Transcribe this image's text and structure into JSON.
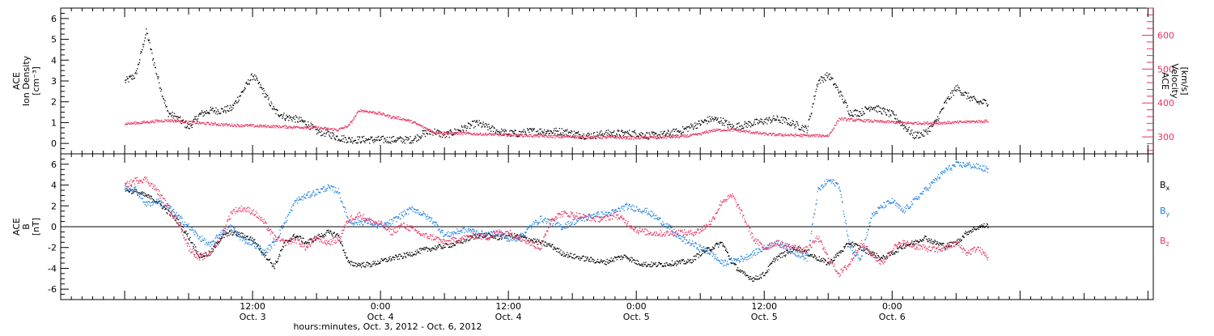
{
  "colors": {
    "black": "#000000",
    "velocity": "#e8325f",
    "by": "#1a7fe0",
    "bz": "#e8325f"
  },
  "chart_data": [
    {
      "type": "scatter",
      "panel": "top",
      "ylabel_lines": [
        "ACE",
        "Ion Density",
        "[cm⁻³]"
      ],
      "y2label_lines": [
        "ACE",
        "Velocity",
        "[km/s]"
      ],
      "ylim": [
        -0.5,
        6.5
      ],
      "y_ticks": [
        0,
        1,
        2,
        3,
        4,
        5,
        6
      ],
      "y2lim": [
        250,
        680
      ],
      "y2_ticks": [
        300,
        400,
        500,
        600
      ],
      "series": [
        {
          "role": "density",
          "axis": "left",
          "x_hours": [
            0,
            1,
            2,
            3,
            4,
            5,
            6,
            7,
            8,
            9,
            10,
            11,
            12,
            13,
            14,
            15,
            16,
            17,
            18,
            19,
            20,
            21,
            22,
            23,
            24,
            25,
            26,
            27,
            28,
            29,
            30,
            31,
            32,
            33,
            34,
            35,
            36,
            37,
            38,
            39,
            40,
            41,
            42,
            43,
            44,
            45,
            46,
            47,
            48,
            49,
            50,
            51,
            52,
            53,
            54,
            55,
            56,
            57,
            58,
            59,
            60,
            61,
            62,
            63,
            64,
            65,
            66,
            67,
            68,
            69,
            70,
            71,
            72,
            73,
            74,
            75,
            76,
            77,
            78,
            79,
            80,
            81
          ],
          "y": [
            3.0,
            3.3,
            5.4,
            3.3,
            1.5,
            1.2,
            0.8,
            1.4,
            1.6,
            1.6,
            1.7,
            2.5,
            3.3,
            2.5,
            1.6,
            1.3,
            1.2,
            1.0,
            0.6,
            0.5,
            0.3,
            0.2,
            0.2,
            0.2,
            0.2,
            0.2,
            0.2,
            0.2,
            0.5,
            0.6,
            0.4,
            0.6,
            0.8,
            1.0,
            0.8,
            0.6,
            0.5,
            0.5,
            0.6,
            0.6,
            0.6,
            0.6,
            0.5,
            0.4,
            0.4,
            0.5,
            0.5,
            0.5,
            0.5,
            0.4,
            0.4,
            0.5,
            0.6,
            0.8,
            1.0,
            1.2,
            1.1,
            0.8,
            0.9,
            1.0,
            1.1,
            1.2,
            1.1,
            0.9,
            0.7,
            3.0,
            3.3,
            2.5,
            1.5,
            1.5,
            1.8,
            1.6,
            1.4,
            0.9,
            0.4,
            0.5,
            1.0,
            2.0,
            2.7,
            2.3,
            2.0,
            2.0
          ]
        },
        {
          "role": "velocity",
          "axis": "right",
          "x_hours": [
            0,
            1,
            2,
            3,
            4,
            5,
            6,
            7,
            8,
            9,
            10,
            11,
            12,
            13,
            14,
            15,
            16,
            17,
            18,
            19,
            20,
            21,
            22,
            23,
            24,
            25,
            26,
            27,
            28,
            29,
            30,
            31,
            32,
            33,
            34,
            35,
            36,
            37,
            38,
            39,
            40,
            41,
            42,
            43,
            44,
            45,
            46,
            47,
            48,
            49,
            50,
            51,
            52,
            53,
            54,
            55,
            56,
            57,
            58,
            59,
            60,
            61,
            62,
            63,
            64,
            65,
            66,
            67,
            68,
            69,
            70,
            71,
            72,
            73,
            74,
            75,
            76,
            77,
            78,
            79,
            80,
            81
          ],
          "y": [
            340,
            342,
            345,
            348,
            350,
            348,
            345,
            342,
            340,
            338,
            336,
            335,
            334,
            333,
            332,
            331,
            330,
            330,
            328,
            325,
            322,
            335,
            380,
            375,
            370,
            360,
            355,
            345,
            330,
            315,
            312,
            312,
            311,
            310,
            309,
            308,
            307,
            306,
            305,
            304,
            303,
            302,
            302,
            301,
            301,
            300,
            300,
            299,
            298,
            300,
            300,
            301,
            302,
            305,
            310,
            320,
            322,
            322,
            318,
            314,
            310,
            308,
            307,
            306,
            305,
            305,
            305,
            355,
            352,
            350,
            348,
            346,
            345,
            343,
            342,
            342,
            342,
            343,
            344,
            346,
            347,
            348
          ]
        }
      ]
    },
    {
      "type": "scatter",
      "panel": "bottom",
      "ylabel_lines": [
        "ACE",
        "B",
        "[nT]"
      ],
      "ylim": [
        -7,
        7
      ],
      "y_ticks": [
        -6,
        -4,
        -2,
        0,
        2,
        4,
        6
      ],
      "zero_line": true,
      "legend": [
        "Bx",
        "By",
        "Bz"
      ],
      "legend_placement": "right",
      "series": [
        {
          "name": "Bx",
          "x_hours": [
            0,
            1,
            2,
            3,
            4,
            5,
            6,
            7,
            8,
            9,
            10,
            11,
            12,
            13,
            14,
            15,
            16,
            17,
            18,
            19,
            20,
            21,
            22,
            23,
            24,
            25,
            26,
            27,
            28,
            29,
            30,
            31,
            32,
            33,
            34,
            35,
            36,
            37,
            38,
            39,
            40,
            41,
            42,
            43,
            44,
            45,
            46,
            47,
            48,
            49,
            50,
            51,
            52,
            53,
            54,
            55,
            56,
            57,
            58,
            59,
            60,
            61,
            62,
            63,
            64,
            65,
            66,
            67,
            68,
            69,
            70,
            71,
            72,
            73,
            74,
            75,
            76,
            77,
            78,
            79,
            80,
            81
          ],
          "y": [
            3.6,
            3.4,
            3.0,
            2.5,
            1.5,
            0.5,
            -1.0,
            -2.8,
            -2.5,
            -1.0,
            -0.5,
            -0.8,
            -1.2,
            -2.5,
            -3.8,
            -1.5,
            -0.8,
            -1.5,
            -1.0,
            -0.5,
            -0.8,
            -3.5,
            -3.6,
            -3.6,
            -3.3,
            -3.0,
            -2.8,
            -2.5,
            -2.2,
            -2.0,
            -1.8,
            -1.6,
            -1.2,
            -0.8,
            -0.8,
            -1.0,
            -0.8,
            -0.9,
            -1.2,
            -1.5,
            -1.8,
            -2.5,
            -2.8,
            -3.0,
            -3.2,
            -3.4,
            -3.0,
            -2.8,
            -3.4,
            -3.6,
            -3.6,
            -3.5,
            -3.4,
            -3.3,
            -2.5,
            -2.0,
            -1.5,
            -3.5,
            -4.5,
            -5.0,
            -4.5,
            -3.0,
            -2.5,
            -2.0,
            -2.5,
            -3.0,
            -3.5,
            -2.5,
            -1.5,
            -2.0,
            -2.5,
            -3.0,
            -2.5,
            -1.8,
            -1.5,
            -1.0,
            -1.5,
            -1.8,
            -1.5,
            -0.5,
            0.0,
            0.2
          ]
        },
        {
          "name": "By",
          "x_hours": [
            0,
            1,
            2,
            3,
            4,
            5,
            6,
            7,
            8,
            9,
            10,
            11,
            12,
            13,
            14,
            15,
            16,
            17,
            18,
            19,
            20,
            21,
            22,
            23,
            24,
            25,
            26,
            27,
            28,
            29,
            30,
            31,
            32,
            33,
            34,
            35,
            36,
            37,
            38,
            39,
            40,
            41,
            42,
            43,
            44,
            45,
            46,
            47,
            48,
            49,
            50,
            51,
            52,
            53,
            54,
            55,
            56,
            57,
            58,
            59,
            60,
            61,
            62,
            63,
            64,
            65,
            66,
            67,
            68,
            69,
            70,
            71,
            72,
            73,
            74,
            75,
            76,
            77,
            78,
            79,
            80,
            81
          ],
          "y": [
            3.8,
            3.6,
            2.2,
            2.5,
            2.0,
            1.0,
            0.0,
            -1.0,
            -1.8,
            -0.5,
            0.0,
            -1.2,
            -1.5,
            -2.5,
            -1.5,
            0.5,
            2.5,
            3.0,
            3.4,
            3.8,
            3.5,
            0.5,
            0.5,
            0.5,
            0.0,
            0.5,
            1.2,
            1.8,
            1.2,
            0.5,
            -0.8,
            -0.5,
            -0.2,
            -0.5,
            -0.8,
            -0.5,
            -1.2,
            -1.0,
            0.0,
            0.8,
            0.5,
            0.0,
            0.5,
            0.8,
            1.2,
            1.2,
            1.5,
            2.0,
            1.8,
            1.5,
            0.8,
            0.0,
            -1.0,
            -1.5,
            -2.0,
            -2.5,
            -3.5,
            -3.2,
            -3.0,
            -2.5,
            -2.0,
            -1.5,
            -1.8,
            -2.5,
            -3.0,
            3.5,
            4.5,
            4.0,
            -2.0,
            -3.0,
            1.0,
            2.0,
            2.5,
            1.5,
            2.5,
            3.5,
            4.5,
            5.5,
            6.0,
            6.0,
            5.8,
            5.5
          ]
        },
        {
          "name": "Bz",
          "x_hours": [
            0,
            1,
            2,
            3,
            4,
            5,
            6,
            7,
            8,
            9,
            10,
            11,
            12,
            13,
            14,
            15,
            16,
            17,
            18,
            19,
            20,
            21,
            22,
            23,
            24,
            25,
            26,
            27,
            28,
            29,
            30,
            31,
            32,
            33,
            34,
            35,
            36,
            37,
            38,
            39,
            40,
            41,
            42,
            43,
            44,
            45,
            46,
            47,
            48,
            49,
            50,
            51,
            52,
            53,
            54,
            55,
            56,
            57,
            58,
            59,
            60,
            61,
            62,
            63,
            64,
            65,
            66,
            67,
            68,
            69,
            70,
            71,
            72,
            73,
            74,
            75,
            76,
            77,
            78,
            79,
            80,
            81
          ],
          "y": [
            4.0,
            4.5,
            4.6,
            3.5,
            2.0,
            0.5,
            -2.0,
            -3.0,
            -2.5,
            -1.0,
            1.5,
            1.8,
            1.5,
            0.5,
            -1.0,
            -1.5,
            -1.2,
            -2.0,
            -1.0,
            -1.5,
            -1.2,
            0.8,
            1.2,
            0.6,
            0.3,
            -0.5,
            0.2,
            -0.2,
            -0.8,
            -1.0,
            -1.5,
            -1.2,
            -1.0,
            -0.8,
            -1.0,
            -0.5,
            -0.5,
            -1.0,
            -1.5,
            -2.0,
            0.8,
            1.3,
            1.2,
            1.0,
            0.8,
            0.8,
            1.2,
            0.5,
            -0.3,
            -0.5,
            -0.6,
            -0.6,
            -0.5,
            -0.6,
            -0.3,
            0.5,
            2.5,
            3.0,
            1.0,
            -1.2,
            -2.0,
            -1.5,
            -1.8,
            -2.0,
            -2.2,
            -1.0,
            -3.0,
            -4.5,
            -3.5,
            -1.5,
            -2.5,
            -3.5,
            -2.0,
            -1.5,
            -1.8,
            -2.0,
            -2.2,
            -2.0,
            -1.5,
            -2.5,
            -2.0,
            -3.0
          ]
        }
      ]
    }
  ],
  "x_axis": {
    "major_ticks": [
      {
        "hours": 12,
        "time": "12:00",
        "date": "Oct. 3"
      },
      {
        "hours": 24,
        "time": "0:00",
        "date": "Oct. 4"
      },
      {
        "hours": 36,
        "time": "12:00",
        "date": "Oct. 4"
      },
      {
        "hours": 48,
        "time": "0:00",
        "date": "Oct. 5"
      },
      {
        "hours": 60,
        "time": "12:00",
        "date": "Oct. 5"
      },
      {
        "hours": 72,
        "time": "0:00",
        "date": "Oct. 6"
      }
    ],
    "xlabel": "hours:minutes, Oct.  3, 2012 - Oct.  6, 2012"
  },
  "legend_labels": [
    {
      "name": "Bx",
      "base": "B",
      "sub": "x"
    },
    {
      "name": "By",
      "base": "B",
      "sub": "y"
    },
    {
      "name": "Bz",
      "base": "B",
      "sub": "z"
    }
  ]
}
